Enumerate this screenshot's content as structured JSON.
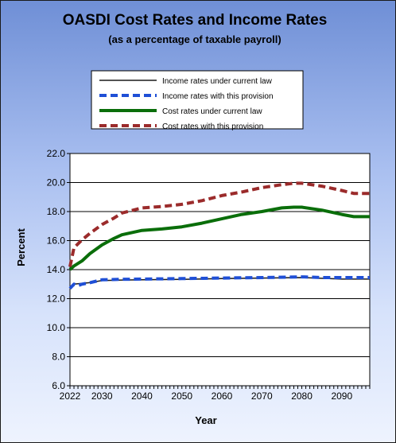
{
  "chart_data": {
    "type": "line",
    "title": "OASDI Cost Rates and Income Rates",
    "subtitle": "(as a percentage of taxable payroll)",
    "xlabel": "Year",
    "ylabel": "Percent",
    "xlim": [
      2022,
      2097
    ],
    "ylim": [
      6.0,
      22.0
    ],
    "x_ticks": [
      "2022",
      "2030",
      "2040",
      "2050",
      "2060",
      "2070",
      "2080",
      "2090"
    ],
    "y_ticks": [
      "6.0",
      "8.0",
      "10.0",
      "12.0",
      "14.0",
      "16.0",
      "18.0",
      "20.0",
      "22.0"
    ],
    "grid": "horizontal",
    "legend_position": "top-center",
    "series": [
      {
        "name": "Income rates under current law",
        "color": "#1a1a1a",
        "style": "solid-thin",
        "x": [
          2022,
          2023,
          2025,
          2027,
          2030,
          2035,
          2040,
          2050,
          2060,
          2070,
          2080,
          2090,
          2097
        ],
        "y": [
          12.8,
          13.0,
          13.05,
          13.1,
          13.25,
          13.28,
          13.3,
          13.33,
          13.38,
          13.42,
          13.45,
          13.35,
          13.35
        ]
      },
      {
        "name": "Income rates with this provision",
        "color": "#1f4fd6",
        "style": "dashed-thick",
        "x": [
          2022,
          2023,
          2024,
          2025,
          2027,
          2030,
          2035,
          2040,
          2050,
          2060,
          2070,
          2080,
          2085,
          2090,
          2097
        ],
        "y": [
          12.7,
          13.0,
          12.9,
          13.0,
          13.1,
          13.3,
          13.33,
          13.35,
          13.38,
          13.42,
          13.45,
          13.5,
          13.45,
          13.45,
          13.45
        ]
      },
      {
        "name": "Cost rates under current law",
        "color": "#0a6e0a",
        "style": "solid-thick",
        "x": [
          2022,
          2023,
          2025,
          2027,
          2030,
          2033,
          2035,
          2040,
          2045,
          2050,
          2055,
          2060,
          2065,
          2070,
          2075,
          2078,
          2080,
          2085,
          2090,
          2093,
          2097
        ],
        "y": [
          14.0,
          14.25,
          14.6,
          15.1,
          15.7,
          16.15,
          16.4,
          16.7,
          16.8,
          16.95,
          17.2,
          17.5,
          17.8,
          18.0,
          18.25,
          18.3,
          18.3,
          18.1,
          17.8,
          17.65,
          17.65
        ]
      },
      {
        "name": "Cost rates with this provision",
        "color": "#9b2b2b",
        "style": "dashed-thick",
        "x": [
          2022,
          2023,
          2025,
          2027,
          2030,
          2033,
          2035,
          2040,
          2045,
          2050,
          2055,
          2060,
          2065,
          2070,
          2075,
          2078,
          2080,
          2085,
          2090,
          2093,
          2097
        ],
        "y": [
          14.2,
          15.5,
          16.05,
          16.5,
          17.1,
          17.55,
          17.9,
          18.25,
          18.35,
          18.5,
          18.75,
          19.1,
          19.35,
          19.65,
          19.85,
          19.95,
          19.95,
          19.75,
          19.45,
          19.25,
          19.25
        ]
      }
    ]
  }
}
